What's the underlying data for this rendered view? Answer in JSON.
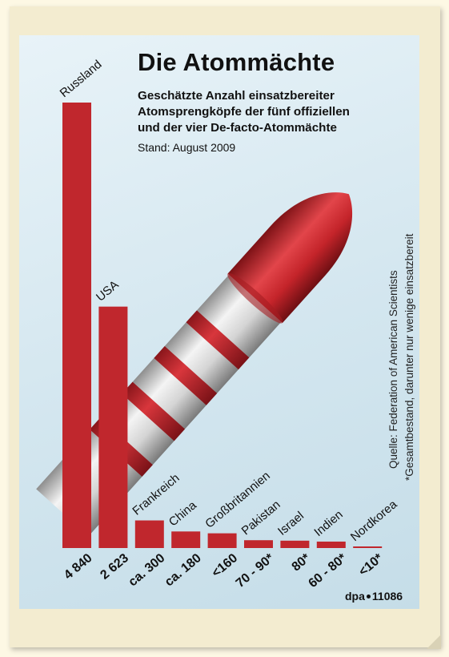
{
  "header": {
    "title": "Die Atommächte",
    "subtitle_lines": [
      "Geschätzte Anzahl einsatzbereiter",
      "Atomsprengköpfe der fünf offiziellen",
      "und der vier De-facto-Atommächte"
    ],
    "stand": "Stand: August 2009"
  },
  "notes": {
    "source": "Quelle: Federation of American Scientists",
    "footnote": "*Gesamtbestand, darunter nur wenige einsatzbereit"
  },
  "credit": {
    "agency": "dpa",
    "number": "11086"
  },
  "colors": {
    "bar": "#c0272d",
    "bar_dark": "#8f1a1f",
    "panel": "#d6e8f0",
    "missile_body": "#dcdcdc",
    "missile_tip": "#c8242a"
  },
  "chart_data": {
    "type": "bar",
    "unit": "Atomsprengköpfe",
    "categories": [
      "Russland",
      "USA",
      "Frankreich",
      "China",
      "Großbritannien",
      "Pakistan",
      "Israel",
      "Indien",
      "Nordkorea"
    ],
    "values": [
      4840,
      2623,
      300,
      180,
      160,
      85,
      80,
      70,
      10
    ],
    "value_labels": [
      "4 840",
      "2 623",
      "ca. 300",
      "ca. 180",
      "<160",
      "70 - 90*",
      "80*",
      "60 - 80*",
      "<10*"
    ],
    "ylim": [
      0,
      4840
    ],
    "grid": false,
    "legend": "none"
  }
}
